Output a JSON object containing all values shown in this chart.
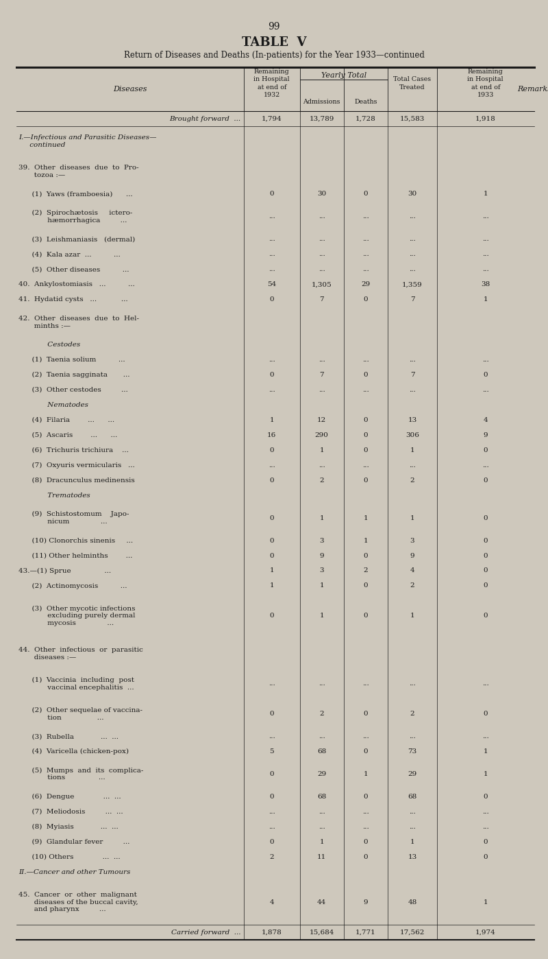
{
  "page_number": "99",
  "table_title": "TABLE  V",
  "table_subtitle": "Return of Diseases and Deaths (In-patients) for the Year 1933—continued",
  "bg_color": "#cec8bc",
  "text_color": "#1a1a1a",
  "rows": [
    {
      "label": "Brought forward  ...",
      "italic": true,
      "v1": "1,794",
      "v2": "13,789",
      "v3": "1,728",
      "v4": "15,583",
      "v5": "1,918",
      "label_align": "right"
    },
    {
      "label": "I.—Infectious and Parasitic Diseases—\n     continued",
      "italic": true,
      "v1": "",
      "v2": "",
      "v3": "",
      "v4": "",
      "v5": "",
      "label_align": "left"
    },
    {
      "label": "39.  Other  diseases  due  to  Pro-\n       tozoa :—",
      "italic": false,
      "v1": "",
      "v2": "",
      "v3": "",
      "v4": "",
      "v5": "",
      "label_align": "left"
    },
    {
      "label": "      (1)  Yaws (framboesia)      ...",
      "italic": false,
      "v1": "0",
      "v2": "30",
      "v3": "0",
      "v4": "30",
      "v5": "1",
      "label_align": "left"
    },
    {
      "label": "      (2)  Spirochætosis     ictero-\n             hæmorrhagica         ...",
      "italic": false,
      "v1": "...",
      "v2": "...",
      "v3": "...",
      "v4": "...",
      "v5": "...",
      "label_align": "left"
    },
    {
      "label": "      (3)  Leishmaniasis   (dermal)",
      "italic": false,
      "v1": "...",
      "v2": "...",
      "v3": "...",
      "v4": "...",
      "v5": "...",
      "label_align": "left"
    },
    {
      "label": "      (4)  Kala azar  ...          ...",
      "italic": false,
      "v1": "...",
      "v2": "...",
      "v3": "...",
      "v4": "...",
      "v5": "...",
      "label_align": "left"
    },
    {
      "label": "      (5)  Other diseases          ...",
      "italic": false,
      "v1": "...",
      "v2": "...",
      "v3": "...",
      "v4": "...",
      "v5": "...",
      "label_align": "left"
    },
    {
      "label": "40.  Ankylostomiasis   ...          ...",
      "italic": false,
      "v1": "54",
      "v2": "1,305",
      "v3": "29",
      "v4": "1,359",
      "v5": "38",
      "label_align": "left"
    },
    {
      "label": "41.  Hydatid cysts   ...           ...",
      "italic": false,
      "v1": "0",
      "v2": "7",
      "v3": "0",
      "v4": "7",
      "v5": "1",
      "label_align": "left"
    },
    {
      "label": "42.  Other  diseases  due  to  Hel-\n       minths :—",
      "italic": false,
      "v1": "",
      "v2": "",
      "v3": "",
      "v4": "",
      "v5": "",
      "label_align": "left"
    },
    {
      "label": "             Cestodes",
      "italic": true,
      "v1": "",
      "v2": "",
      "v3": "",
      "v4": "",
      "v5": "",
      "label_align": "left"
    },
    {
      "label": "      (1)  Taenia solium          ...",
      "italic": false,
      "v1": "...",
      "v2": "...",
      "v3": "...",
      "v4": "...",
      "v5": "...",
      "label_align": "left"
    },
    {
      "label": "      (2)  Taenia sagginata       ...",
      "italic": false,
      "v1": "0",
      "v2": "7",
      "v3": "0",
      "v4": "7",
      "v5": "0",
      "label_align": "left"
    },
    {
      "label": "      (3)  Other cestodes         ...",
      "italic": false,
      "v1": "...",
      "v2": "...",
      "v3": "...",
      "v4": "...",
      "v5": "...",
      "label_align": "left"
    },
    {
      "label": "             Nematodes",
      "italic": true,
      "v1": "",
      "v2": "",
      "v3": "",
      "v4": "",
      "v5": "",
      "label_align": "left"
    },
    {
      "label": "      (4)  Filaria        ...      ...",
      "italic": false,
      "v1": "1",
      "v2": "12",
      "v3": "0",
      "v4": "13",
      "v5": "4",
      "label_align": "left"
    },
    {
      "label": "      (5)  Ascaris        ...      ...",
      "italic": false,
      "v1": "16",
      "v2": "290",
      "v3": "0",
      "v4": "306",
      "v5": "9",
      "label_align": "left"
    },
    {
      "label": "      (6)  Trichuris trichiura    ...",
      "italic": false,
      "v1": "0",
      "v2": "1",
      "v3": "0",
      "v4": "1",
      "v5": "0",
      "label_align": "left"
    },
    {
      "label": "      (7)  Oxyuris vermicularis   ...",
      "italic": false,
      "v1": "...",
      "v2": "...",
      "v3": "...",
      "v4": "...",
      "v5": "...",
      "label_align": "left"
    },
    {
      "label": "      (8)  Dracunculus medinensis",
      "italic": false,
      "v1": "0",
      "v2": "2",
      "v3": "0",
      "v4": "2",
      "v5": "0",
      "label_align": "left"
    },
    {
      "label": "             Trematodes",
      "italic": true,
      "v1": "",
      "v2": "",
      "v3": "",
      "v4": "",
      "v5": "",
      "label_align": "left"
    },
    {
      "label": "      (9)  Schistostomum    Japo-\n             nicum              ...",
      "italic": false,
      "v1": "0",
      "v2": "1",
      "v3": "1",
      "v4": "1",
      "v5": "0",
      "label_align": "left"
    },
    {
      "label": "      (10) Clonorchis sinenis     ...",
      "italic": false,
      "v1": "0",
      "v2": "3",
      "v3": "1",
      "v4": "3",
      "v5": "0",
      "label_align": "left"
    },
    {
      "label": "      (11) Other helminths        ...",
      "italic": false,
      "v1": "0",
      "v2": "9",
      "v3": "0",
      "v4": "9",
      "v5": "0",
      "label_align": "left"
    },
    {
      "label": "43.—(1) Sprue               ...",
      "italic": false,
      "v1": "1",
      "v2": "3",
      "v3": "2",
      "v4": "4",
      "v5": "0",
      "label_align": "left"
    },
    {
      "label": "      (2)  Actinomycosis          ...",
      "italic": false,
      "v1": "1",
      "v2": "1",
      "v3": "0",
      "v4": "2",
      "v5": "0",
      "label_align": "left"
    },
    {
      "label": "      (3)  Other mycotic infections\n             excluding purely dermal\n             mycosis              ...",
      "italic": false,
      "v1": "0",
      "v2": "1",
      "v3": "0",
      "v4": "1",
      "v5": "0",
      "label_align": "left"
    },
    {
      "label": "44.  Other  infectious  or  parasitic\n       diseases :—",
      "italic": false,
      "v1": "",
      "v2": "",
      "v3": "",
      "v4": "",
      "v5": "",
      "label_align": "left"
    },
    {
      "label": "      (1)  Vaccinia  including  post\n             vaccinal encephalitis  ...",
      "italic": false,
      "v1": "...",
      "v2": "...",
      "v3": "...",
      "v4": "...",
      "v5": "...",
      "label_align": "left"
    },
    {
      "label": "      (2)  Other sequelae of vaccina-\n             tion                ...",
      "italic": false,
      "v1": "0",
      "v2": "2",
      "v3": "0",
      "v4": "2",
      "v5": "0",
      "label_align": "left"
    },
    {
      "label": "      (3)  Rubella            ...  ...",
      "italic": false,
      "v1": "...",
      "v2": "...",
      "v3": "...",
      "v4": "...",
      "v5": "...",
      "label_align": "left"
    },
    {
      "label": "      (4)  Varicella (chicken-pox)",
      "italic": false,
      "v1": "5",
      "v2": "68",
      "v3": "0",
      "v4": "73",
      "v5": "1",
      "label_align": "left"
    },
    {
      "label": "      (5)  Mumps  and  its  complica-\n             tions               ...",
      "italic": false,
      "v1": "0",
      "v2": "29",
      "v3": "1",
      "v4": "29",
      "v5": "1",
      "label_align": "left"
    },
    {
      "label": "      (6)  Dengue             ...  ...",
      "italic": false,
      "v1": "0",
      "v2": "68",
      "v3": "0",
      "v4": "68",
      "v5": "0",
      "label_align": "left"
    },
    {
      "label": "      (7)  Meliodosis         ...  ...",
      "italic": false,
      "v1": "...",
      "v2": "...",
      "v3": "...",
      "v4": "...",
      "v5": "...",
      "label_align": "left"
    },
    {
      "label": "      (8)  Myiasis            ...  ...",
      "italic": false,
      "v1": "...",
      "v2": "...",
      "v3": "...",
      "v4": "...",
      "v5": "...",
      "label_align": "left"
    },
    {
      "label": "      (9)  Glandular fever         ...",
      "italic": false,
      "v1": "0",
      "v2": "1",
      "v3": "0",
      "v4": "1",
      "v5": "0",
      "label_align": "left"
    },
    {
      "label": "      (10) Others             ...  ...",
      "italic": false,
      "v1": "2",
      "v2": "11",
      "v3": "0",
      "v4": "13",
      "v5": "0",
      "label_align": "left"
    },
    {
      "label": "II.—Cancer and other Tumours",
      "italic": true,
      "v1": "",
      "v2": "",
      "v3": "",
      "v4": "",
      "v5": "",
      "label_align": "left"
    },
    {
      "label": "45.  Cancer  or  other  malignant\n       diseases of the buccal cavity,\n       and pharynx         ...",
      "italic": false,
      "v1": "4",
      "v2": "44",
      "v3": "9",
      "v4": "48",
      "v5": "1",
      "label_align": "left"
    },
    {
      "label": "Carried forward  ...",
      "italic": true,
      "v1": "1,878",
      "v2": "15,684",
      "v3": "1,771",
      "v4": "17,562",
      "v5": "1,974",
      "label_align": "right"
    }
  ]
}
